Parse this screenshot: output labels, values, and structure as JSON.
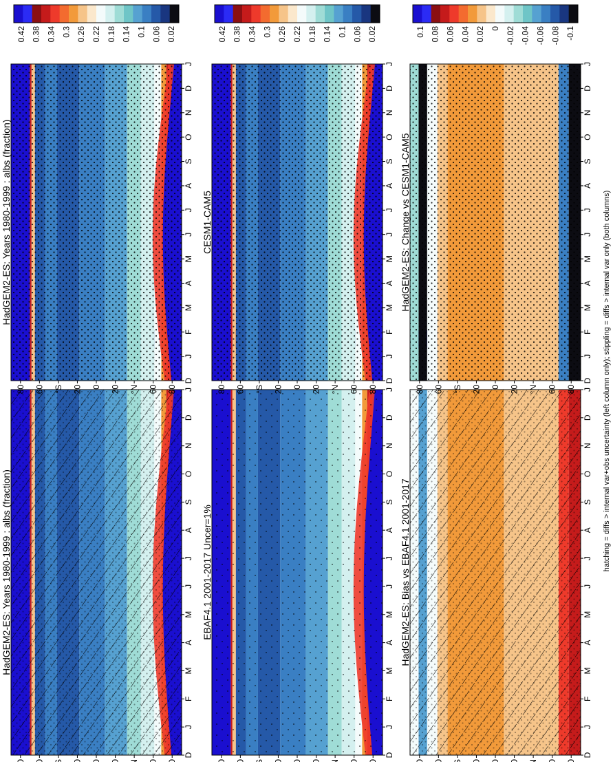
{
  "footer": "hatching = diffs > internal var+obs uncertainty (left column only); stippling = diffs > internal var only (both columns)",
  "months": [
    "D",
    "J",
    "F",
    "M",
    "A",
    "M",
    "J",
    "J",
    "A",
    "S",
    "O",
    "N",
    "D",
    "J"
  ],
  "lat_ticks": [
    "80",
    "60",
    "°N",
    "20",
    "0",
    "20",
    "°S",
    "60",
    "80"
  ],
  "palettes": {
    "albedo": [
      "#1a0fd0",
      "#2b2bf5",
      "#8b0f12",
      "#c51b1b",
      "#ee3a2b",
      "#f36b2f",
      "#f29a3a",
      "#f6c489",
      "#fbe8cc",
      "#f4fbfb",
      "#d4f0ef",
      "#9fdcd6",
      "#6fc5c7",
      "#56a1d1",
      "#3a7fc3",
      "#2559a8",
      "#193680",
      "#0c0c12"
    ],
    "diff": [
      "#1a0fd0",
      "#2b2bf5",
      "#8b0f12",
      "#c51b1b",
      "#ee3a2b",
      "#f36b2f",
      "#f29a3a",
      "#f6c489",
      "#fbe8cc",
      "#f4fbfb",
      "#d4f0ef",
      "#9fdcd6",
      "#6fc5c7",
      "#56a1d1",
      "#3a7fc3",
      "#2559a8",
      "#193680",
      "#0c0c12"
    ]
  },
  "chart_data": [
    {
      "type": "heatmap",
      "title": "HadGEM2-ES: Years 1980-1999 : albs (fraction)",
      "colorbar_ticks": [
        "0.42",
        "0.38",
        "0.34",
        "0.3",
        "0.26",
        "0.22",
        "0.18",
        "0.14",
        "0.1",
        "0.06",
        "0.02"
      ],
      "hatch": "hatch+stipple",
      "variant": "model"
    },
    {
      "type": "heatmap",
      "title": "HadGEM2-ES: Years 1980-1999 : albs (fraction)",
      "colorbar_ticks": [
        "0.42",
        "0.38",
        "0.34",
        "0.3",
        "0.26",
        "0.22",
        "0.18",
        "0.14",
        "0.1",
        "0.06",
        "0.02"
      ],
      "hatch": "stipple",
      "variant": "model"
    },
    {
      "type": "heatmap",
      "title": "EBAF4.1 2001-2017 Uncer=1%",
      "colorbar_ticks": [
        "0.42",
        "0.38",
        "0.34",
        "0.3",
        "0.26",
        "0.22",
        "0.18",
        "0.14",
        "0.1",
        "0.06",
        "0.02"
      ],
      "hatch": "stipple-light",
      "variant": "obs"
    },
    {
      "type": "heatmap",
      "title": "CESM1-CAM5",
      "colorbar_ticks": [
        "0.42",
        "0.38",
        "0.34",
        "0.3",
        "0.26",
        "0.22",
        "0.18",
        "0.14",
        "0.1",
        "0.06",
        "0.02"
      ],
      "hatch": "stipple",
      "variant": "model2"
    },
    {
      "type": "heatmap",
      "title": "HadGEM2-ES: Bias vs EBAF4.1 2001-2017",
      "colorbar_ticks": [
        "0.1",
        "0.08",
        "0.06",
        "0.04",
        "0.02",
        "0",
        "-0.02",
        "-0.04",
        "-0.06",
        "-0.08",
        "-0.1"
      ],
      "hatch": "hatch+stipple",
      "variant": "bias"
    },
    {
      "type": "heatmap",
      "title": "HadGEM2-ES: Change vs CESM1-CAM5",
      "colorbar_ticks": [
        "0.1",
        "0.08",
        "0.06",
        "0.04",
        "0.02",
        "0",
        "-0.02",
        "-0.04",
        "-0.06",
        "-0.08",
        "-0.1"
      ],
      "hatch": "stipple",
      "variant": "change"
    }
  ]
}
